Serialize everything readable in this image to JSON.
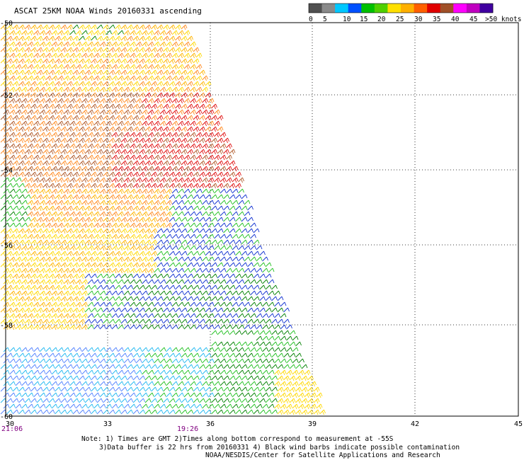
{
  "title": "ASCAT 25KM NOAA Winds 20160331 ascending",
  "color_scale": {
    "colors": [
      "#505050",
      "#8a8a8a",
      "#00c8ff",
      "#0050ff",
      "#00c000",
      "#50d000",
      "#ffe000",
      "#ffb000",
      "#ff6000",
      "#e00000",
      "#a05028",
      "#ff00ff",
      "#c000c0",
      "#4000a0"
    ],
    "labels": [
      "0",
      "5",
      "10",
      "15",
      "20",
      "25",
      "30",
      "35",
      "40",
      "45",
      ">50 knots"
    ]
  },
  "axes": {
    "x_ticks": [
      "30",
      "33",
      "36",
      "39",
      "42",
      "45"
    ],
    "y_ticks": [
      "-50",
      "-52",
      "-54",
      "-56",
      "-58",
      "-60"
    ]
  },
  "times": [
    "21:06",
    "19:26"
  ],
  "notes": {
    "line1": "Note: 1) Times are GMT 2)Times along bottom correspond to measurement at -55S",
    "line2": "3)Data buffer is 22 hrs from 20160331 4) Black wind barbs indicate possible contamination",
    "line3": "NOAA/NESDIS/Center for Satellite Applications and Research"
  }
}
